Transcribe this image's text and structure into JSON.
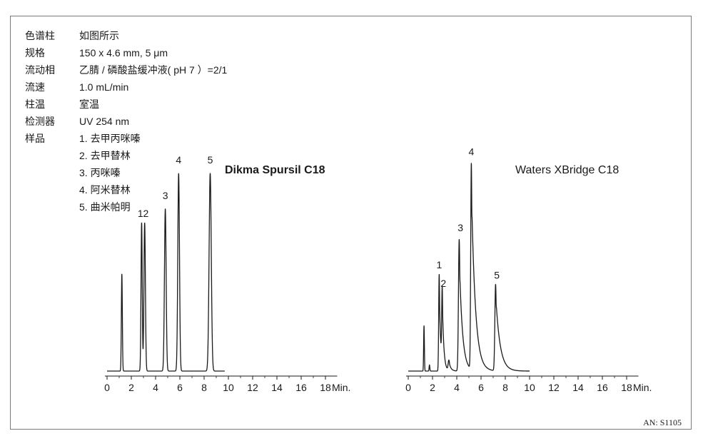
{
  "conditions": [
    {
      "label": "色谱柱",
      "value": "如图所示"
    },
    {
      "label": "规格",
      "value": "150 x 4.6 mm, 5 μm"
    },
    {
      "label": "流动相",
      "value": "乙腈 / 磷酸盐缓冲液( pH 7 ）=2/1"
    },
    {
      "label": "流速",
      "value": "1.0 mL/min"
    },
    {
      "label": "柱温",
      "value": "室温"
    },
    {
      "label": "检测器",
      "value": "UV 254 nm"
    }
  ],
  "samples_label": "样品",
  "samples": [
    "1. 去甲丙咪嗪",
    "2. 去甲替林",
    "3. 丙咪嗪",
    "4. 阿米替林",
    "5. 曲米帕明"
  ],
  "footer_code": "AN: S1105",
  "line_color": "#1a1a1a",
  "chart_data": [
    {
      "type": "line",
      "title": "Dikma Spursil C18",
      "title_bold": true,
      "x_ticks": [
        0,
        2,
        4,
        6,
        8,
        10,
        12,
        14,
        16,
        18
      ],
      "x_unit": "Min.",
      "xlim": [
        0,
        18.5
      ],
      "trace_end": 9.7,
      "baseline_signal": 0.0,
      "peaks": [
        {
          "label": "",
          "rt": 1.22,
          "height": 0.49,
          "width": 0.04,
          "tail": 0.0
        },
        {
          "label": "1",
          "rt": 2.85,
          "height": 0.75,
          "width": 0.05,
          "tail": 0.0
        },
        {
          "label": "2",
          "rt": 3.1,
          "height": 0.75,
          "width": 0.06,
          "tail": 0.0
        },
        {
          "label": "3",
          "rt": 4.8,
          "height": 0.82,
          "width": 0.07,
          "tail": 0.0
        },
        {
          "label": "4",
          "rt": 5.9,
          "height": 1.0,
          "width": 0.07,
          "tail": 0.0
        },
        {
          "label": "5",
          "rt": 8.5,
          "height": 1.0,
          "width": 0.09,
          "tail": 0.0
        }
      ],
      "peak_labels": [
        {
          "text": "1",
          "x": 2.75,
          "y": 0.78
        },
        {
          "text": "2",
          "x": 3.2,
          "y": 0.78
        },
        {
          "text": "3",
          "x": 4.8,
          "y": 0.87
        },
        {
          "text": "4",
          "x": 5.9,
          "y": 1.05
        },
        {
          "text": "5",
          "x": 8.5,
          "y": 1.05
        }
      ]
    },
    {
      "type": "line",
      "title": "Waters XBridge C18",
      "title_bold": false,
      "x_ticks": [
        0,
        2,
        4,
        6,
        8,
        10,
        12,
        14,
        16,
        18
      ],
      "x_unit": "Min.",
      "xlim": [
        0,
        18.5
      ],
      "trace_end": 10.0,
      "baseline_signal": 0.0,
      "peaks": [
        {
          "label": "",
          "rt": 1.3,
          "height": 0.22,
          "width": 0.03,
          "tail": 0.0
        },
        {
          "label": "",
          "rt": 1.75,
          "height": 0.03,
          "width": 0.03,
          "tail": 0.0
        },
        {
          "label": "1",
          "rt": 2.55,
          "height": 0.47,
          "width": 0.04,
          "tail": 0.12
        },
        {
          "label": "2",
          "rt": 2.8,
          "height": 0.36,
          "width": 0.04,
          "tail": 0.12
        },
        {
          "label": "",
          "rt": 3.35,
          "height": 0.05,
          "width": 0.06,
          "tail": 0.15
        },
        {
          "label": "3",
          "rt": 4.2,
          "height": 0.64,
          "width": 0.06,
          "tail": 0.25
        },
        {
          "label": "4",
          "rt": 5.2,
          "height": 1.0,
          "width": 0.05,
          "tail": 0.32
        },
        {
          "label": "5",
          "rt": 7.2,
          "height": 0.42,
          "width": 0.06,
          "tail": 0.35
        }
      ],
      "peak_labels": [
        {
          "text": "1",
          "x": 2.55,
          "y": 0.5
        },
        {
          "text": "2",
          "x": 2.9,
          "y": 0.41
        },
        {
          "text": "3",
          "x": 4.3,
          "y": 0.68
        },
        {
          "text": "4",
          "x": 5.2,
          "y": 1.05
        },
        {
          "text": "5",
          "x": 7.3,
          "y": 0.45
        }
      ]
    }
  ]
}
